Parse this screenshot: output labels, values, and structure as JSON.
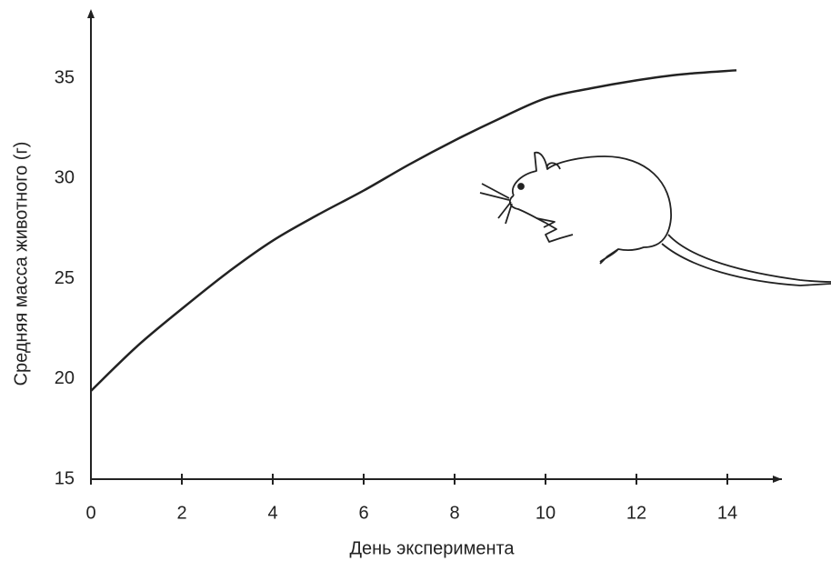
{
  "chart_data": {
    "type": "line",
    "x_label": "День эксперимента",
    "y_label": "Средняя масса животного (г)",
    "x": [
      0,
      1,
      2,
      3,
      4,
      5,
      6,
      7,
      8,
      9,
      10,
      11,
      12,
      13,
      14.2
    ],
    "values": [
      19.4,
      21.6,
      23.5,
      25.3,
      26.9,
      28.2,
      29.4,
      30.7,
      31.9,
      33.0,
      34.0,
      34.5,
      34.9,
      35.2,
      35.4
    ],
    "color": "#222222",
    "xlim": [
      0,
      15.2
    ],
    "ylim": [
      15,
      38
    ],
    "xticks": [
      0,
      2,
      4,
      6,
      8,
      10,
      12,
      14
    ],
    "yticks": [
      15,
      20,
      25,
      30,
      35
    ],
    "grid": false
  }
}
